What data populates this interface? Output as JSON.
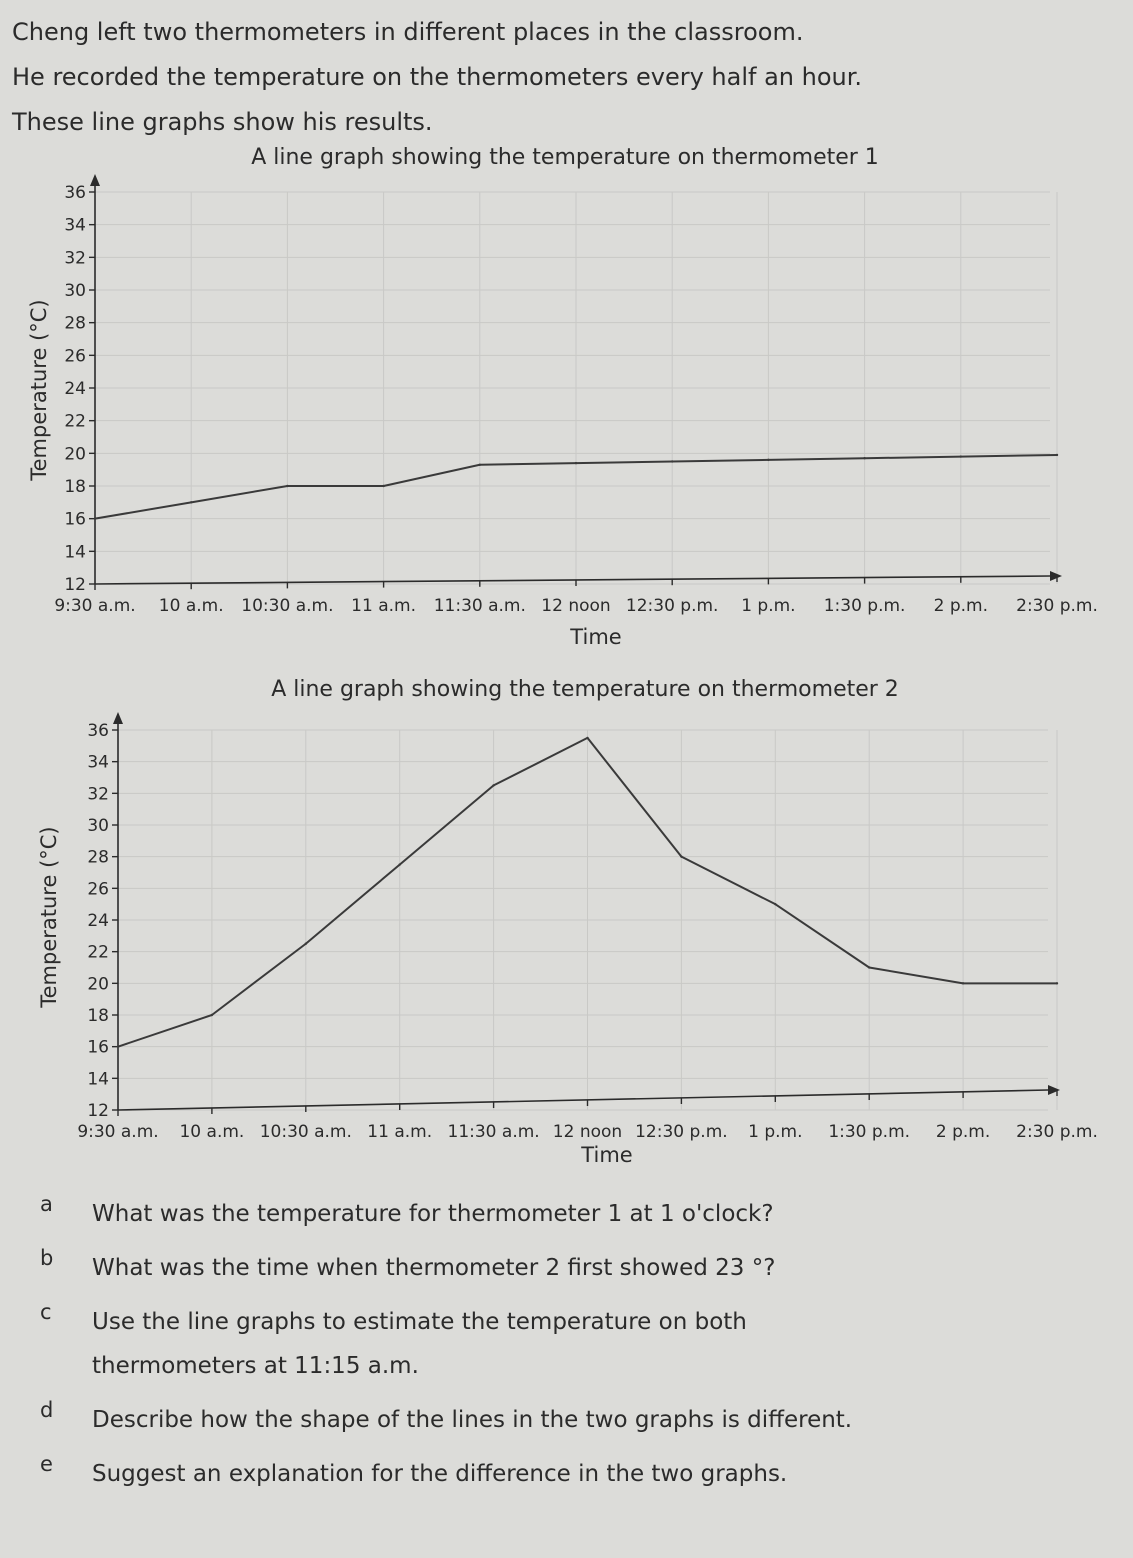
{
  "intro": {
    "line1": "Cheng left two thermometers in different places in the classroom.",
    "line2": "He recorded the temperature on the thermometers every half an hour.",
    "line3": "These line graphs show his results."
  },
  "chart_data": [
    {
      "type": "line",
      "title": "A line graph showing the temperature on thermometer 1",
      "xlabel": "Time",
      "ylabel": "Temperature (°C)",
      "categories": [
        "9:30 a.m.",
        "10 a.m.",
        "10:30 a.m.",
        "11 a.m.",
        "11:30 a.m.",
        "12 noon",
        "12:30 p.m.",
        "1 p.m.",
        "1:30 p.m.",
        "2 p.m.",
        "2:30 p.m."
      ],
      "yticks": [
        12,
        14,
        16,
        18,
        20,
        22,
        24,
        26,
        28,
        30,
        32,
        34,
        36
      ],
      "ylim": [
        12,
        36
      ],
      "grid": true,
      "series": [
        {
          "values": [
            16,
            17,
            18,
            18,
            19.3,
            19.4,
            19.5,
            19.6,
            19.7,
            19.8,
            19.9
          ]
        }
      ]
    },
    {
      "type": "line",
      "title": "A line graph showing the temperature on thermometer 2",
      "xlabel": "Time",
      "ylabel": "Temperature (°C)",
      "categories": [
        "9:30 a.m.",
        "10 a.m.",
        "10:30 a.m.",
        "11 a.m.",
        "11:30 a.m.",
        "12 noon",
        "12:30 p.m.",
        "1 p.m.",
        "1:30 p.m.",
        "2 p.m.",
        "2:30 p.m."
      ],
      "yticks": [
        12,
        14,
        16,
        18,
        20,
        22,
        24,
        26,
        28,
        30,
        32,
        34,
        36
      ],
      "ylim": [
        12,
        36
      ],
      "grid": true,
      "series": [
        {
          "values": [
            16,
            18,
            22.5,
            27.5,
            32.5,
            35.5,
            28,
            25,
            21,
            20,
            20
          ]
        }
      ]
    }
  ],
  "questions": [
    {
      "letter": "a",
      "lines": [
        "What was the temperature for thermometer 1 at 1 o'clock?"
      ]
    },
    {
      "letter": "b",
      "lines": [
        "What was the time when thermometer 2 first showed 23 °?"
      ]
    },
    {
      "letter": "c",
      "lines": [
        "Use the line graphs to estimate the temperature on both",
        "thermometers at 11:15 a.m."
      ]
    },
    {
      "letter": "d",
      "lines": [
        "Describe how the shape of the lines in the two graphs is different."
      ]
    },
    {
      "letter": "e",
      "lines": [
        "Suggest an explanation for the difference in the two graphs."
      ]
    }
  ],
  "colors": {
    "line": "#3a3a3a",
    "axis": "#2b2b2b",
    "grid": "#c9c9c6",
    "text": "#2b2b2b"
  }
}
